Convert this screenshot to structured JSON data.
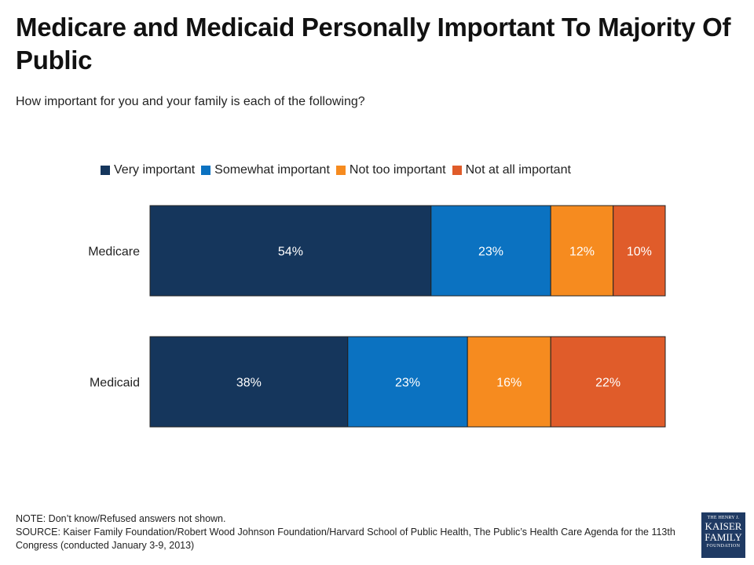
{
  "title": "Medicare and Medicaid Personally Important To Majority Of Public",
  "subtitle": "How important for you and your family is each of the following?",
  "legend": [
    {
      "label": "Very important",
      "color": "#15365c"
    },
    {
      "label": "Somewhat important",
      "color": "#0b72c1"
    },
    {
      "label": "Not too important",
      "color": "#f68b1f"
    },
    {
      "label": "Not at all important",
      "color": "#e05c2a"
    }
  ],
  "chart_data": {
    "type": "bar",
    "orientation": "horizontal",
    "stacked": true,
    "categories": [
      "Medicare",
      "Medicaid"
    ],
    "series": [
      {
        "name": "Very important",
        "values": [
          54,
          38
        ],
        "labels": [
          "54%",
          "38%"
        ],
        "color": "#15365c"
      },
      {
        "name": "Somewhat important",
        "values": [
          23,
          23
        ],
        "labels": [
          "23%",
          "23%"
        ],
        "color": "#0b72c1"
      },
      {
        "name": "Not too important",
        "values": [
          12,
          16
        ],
        "labels": [
          "12%",
          "16%"
        ],
        "color": "#f68b1f"
      },
      {
        "name": "Not at all important",
        "values": [
          10,
          22
        ],
        "labels": [
          "10%",
          "22%"
        ],
        "color": "#e05c2a"
      }
    ],
    "legend_position": "top",
    "grid": false
  },
  "note": "NOTE: Don’t know/Refused answers not shown.",
  "source": "SOURCE: Kaiser Family Foundation/Robert Wood Johnson Foundation/Harvard School of Public Health, The Public’s Health Care Agenda for the 113th Congress (conducted January 3-9, 2013)",
  "logo": {
    "line1": "THE HENRY J.",
    "line2": "KAISER",
    "line3": "FAMILY",
    "line4": "FOUNDATION"
  }
}
